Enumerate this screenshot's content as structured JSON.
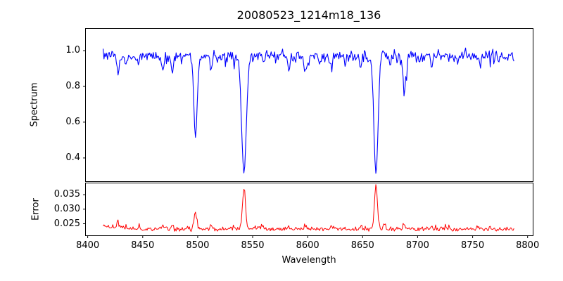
{
  "figure": {
    "title": "20080523_1214m18_136",
    "background": "#ffffff",
    "spine_color": "#000000"
  },
  "x_axis": {
    "label": "Wavelength",
    "tick_values": [
      8400,
      8450,
      8500,
      8550,
      8600,
      8650,
      8700,
      8750,
      8800
    ],
    "tick_labels": [
      "8400",
      "8450",
      "8500",
      "8550",
      "8600",
      "8650",
      "8700",
      "8750",
      "8800"
    ],
    "xlim": [
      8398,
      8805
    ]
  },
  "chart_data": [
    {
      "id": "spectrum",
      "type": "line",
      "ylabel": "Spectrum",
      "line_color": "#0000ff",
      "xlim": [
        8398,
        8805
      ],
      "ylim": [
        0.268,
        1.124
      ],
      "ytick_values": [
        1.0,
        0.8,
        0.6,
        0.4
      ],
      "ytick_labels": [
        "1.0",
        "0.8",
        "0.6",
        "0.4"
      ],
      "x_start": 8414,
      "x_end": 8788,
      "x_step": 0.8,
      "continuum": 0.972,
      "noise_sigma": 0.014,
      "seed": 7,
      "absorption_lines": [
        {
          "center": 8427.5,
          "depth": 0.085,
          "sigma": 1.1
        },
        {
          "center": 8434.8,
          "depth": 0.065,
          "sigma": 0.9
        },
        {
          "center": 8446.0,
          "depth": 0.04,
          "sigma": 0.9
        },
        {
          "center": 8468.3,
          "depth": 0.09,
          "sigma": 1.1
        },
        {
          "center": 8477.0,
          "depth": 0.105,
          "sigma": 1.0
        },
        {
          "center": 8498.0,
          "depth": 0.45,
          "sigma": 1.5
        },
        {
          "center": 8512.4,
          "depth": 0.075,
          "sigma": 0.9
        },
        {
          "center": 8526.0,
          "depth": 0.04,
          "sigma": 0.8
        },
        {
          "center": 8542.1,
          "depth": 0.655,
          "sigma": 2.1
        },
        {
          "center": 8560.0,
          "depth": 0.04,
          "sigma": 0.8
        },
        {
          "center": 8582.9,
          "depth": 0.085,
          "sigma": 1.0
        },
        {
          "center": 8598.0,
          "depth": 0.1,
          "sigma": 1.1
        },
        {
          "center": 8611.0,
          "depth": 0.05,
          "sigma": 0.8
        },
        {
          "center": 8621.4,
          "depth": 0.085,
          "sigma": 1.0
        },
        {
          "center": 8634.0,
          "depth": 0.05,
          "sigma": 0.8
        },
        {
          "center": 8648.2,
          "depth": 0.07,
          "sigma": 0.9
        },
        {
          "center": 8662.1,
          "depth": 0.655,
          "sigma": 1.9
        },
        {
          "center": 8674.9,
          "depth": 0.055,
          "sigma": 0.9
        },
        {
          "center": 8688.0,
          "depth": 0.21,
          "sigma": 1.3
        },
        {
          "center": 8702.0,
          "depth": 0.05,
          "sigma": 0.8
        },
        {
          "center": 8713.0,
          "depth": 0.065,
          "sigma": 0.9
        },
        {
          "center": 8736.0,
          "depth": 0.05,
          "sigma": 0.8
        },
        {
          "center": 8757.0,
          "depth": 0.045,
          "sigma": 0.8
        },
        {
          "center": 8773.0,
          "depth": 0.04,
          "sigma": 0.8
        }
      ]
    },
    {
      "id": "error",
      "type": "line",
      "ylabel": "Error",
      "line_color": "#ff0000",
      "xlim": [
        8398,
        8805
      ],
      "ylim": [
        0.0209,
        0.039
      ],
      "ytick_values": [
        0.035,
        0.03,
        0.025
      ],
      "ytick_labels": [
        "0.035",
        "0.030",
        "0.025"
      ],
      "x_start": 8414,
      "x_end": 8788,
      "x_step": 0.8,
      "baseline": 0.0232,
      "noise_sigma": 0.00035,
      "seed": 99,
      "emission_peaks": [
        {
          "center": 8427.5,
          "height": 0.0018,
          "sigma": 1.0
        },
        {
          "center": 8434.8,
          "height": 0.0012,
          "sigma": 0.9
        },
        {
          "center": 8446.0,
          "height": 0.0006,
          "sigma": 0.9
        },
        {
          "center": 8468.3,
          "height": 0.0011,
          "sigma": 1.0
        },
        {
          "center": 8477.0,
          "height": 0.0013,
          "sigma": 0.9
        },
        {
          "center": 8498.0,
          "height": 0.006,
          "sigma": 1.2
        },
        {
          "center": 8512.4,
          "height": 0.0011,
          "sigma": 0.9
        },
        {
          "center": 8542.1,
          "height": 0.0136,
          "sigma": 1.4
        },
        {
          "center": 8558.0,
          "height": 0.0012,
          "sigma": 0.8
        },
        {
          "center": 8582.9,
          "height": 0.001,
          "sigma": 0.9
        },
        {
          "center": 8598.0,
          "height": 0.0011,
          "sigma": 0.9
        },
        {
          "center": 8621.4,
          "height": 0.0009,
          "sigma": 0.9
        },
        {
          "center": 8648.2,
          "height": 0.0008,
          "sigma": 0.9
        },
        {
          "center": 8662.1,
          "height": 0.0151,
          "sigma": 1.3
        },
        {
          "center": 8669.5,
          "height": 0.0022,
          "sigma": 0.8
        },
        {
          "center": 8688.0,
          "height": 0.0018,
          "sigma": 1.0
        },
        {
          "center": 8713.0,
          "height": 0.0008,
          "sigma": 0.8
        },
        {
          "center": 8755.0,
          "height": 0.001,
          "sigma": 0.8
        },
        {
          "center": 8766.0,
          "height": 0.001,
          "sigma": 0.8
        }
      ]
    }
  ]
}
